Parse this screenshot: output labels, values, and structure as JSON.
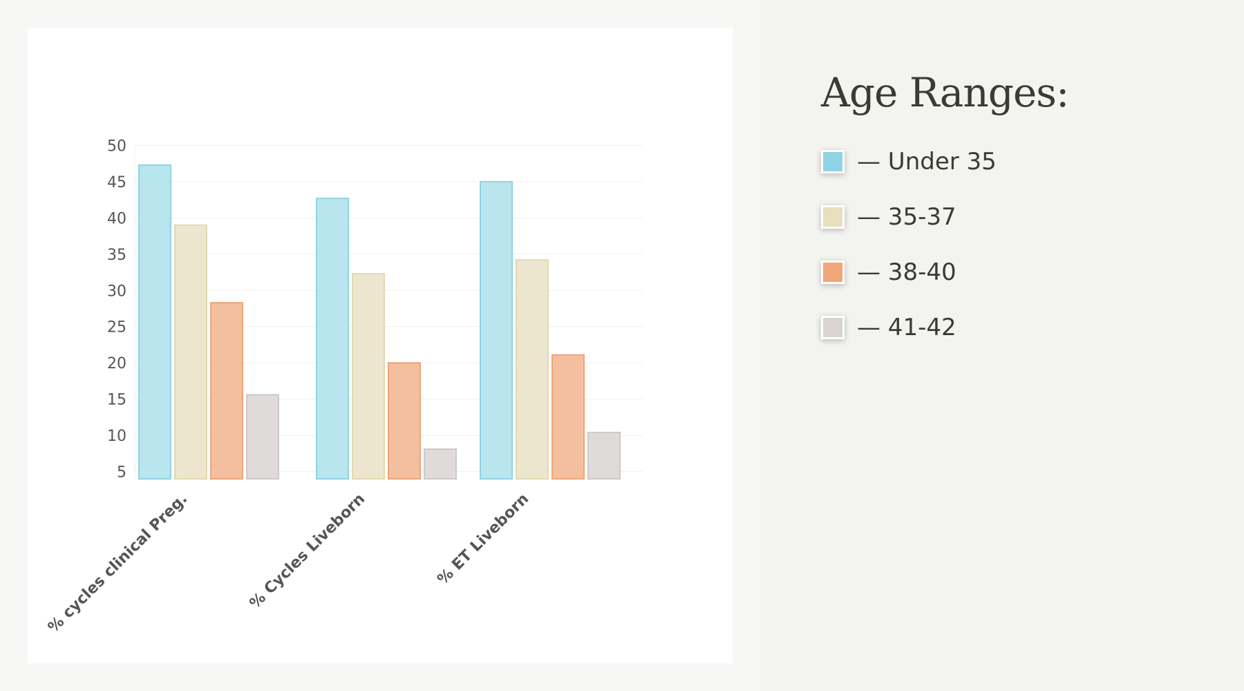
{
  "chart_data": {
    "type": "bar",
    "categories": [
      "% cycles clinical Preg.",
      "% Cycles Liveborn",
      "% ET Liveborn"
    ],
    "series": [
      {
        "name": "Under 35",
        "values": [
          47.3,
          42.7,
          45.0
        ],
        "fill": "#b9e5ee",
        "stroke": "#8fd4e4"
      },
      {
        "name": "35-37",
        "values": [
          39.0,
          32.3,
          34.2
        ],
        "fill": "#ede6cf",
        "stroke": "#e2d8b2"
      },
      {
        "name": "38-40",
        "values": [
          28.3,
          20.0,
          21.1
        ],
        "fill": "#f4bf9f",
        "stroke": "#eda57a"
      },
      {
        "name": "41-42",
        "values": [
          15.6,
          8.1,
          10.4
        ],
        "fill": "#e0dbdb",
        "stroke": "#cfc8c8"
      }
    ],
    "yticks": [
      5,
      10,
      15,
      20,
      25,
      30,
      35,
      40,
      45,
      50
    ],
    "ylim": [
      4,
      51
    ],
    "grid": true,
    "legend_position": "right"
  },
  "legend": {
    "title": "Age Ranges:",
    "items": [
      {
        "label": "— Under 35",
        "color": "#8fd4e4"
      },
      {
        "label": "— 35-37",
        "color": "#e8dfbf"
      },
      {
        "label": "— 38-40",
        "color": "#f0a679"
      },
      {
        "label": "— 41-42",
        "color": "#d9d3d3"
      }
    ]
  }
}
